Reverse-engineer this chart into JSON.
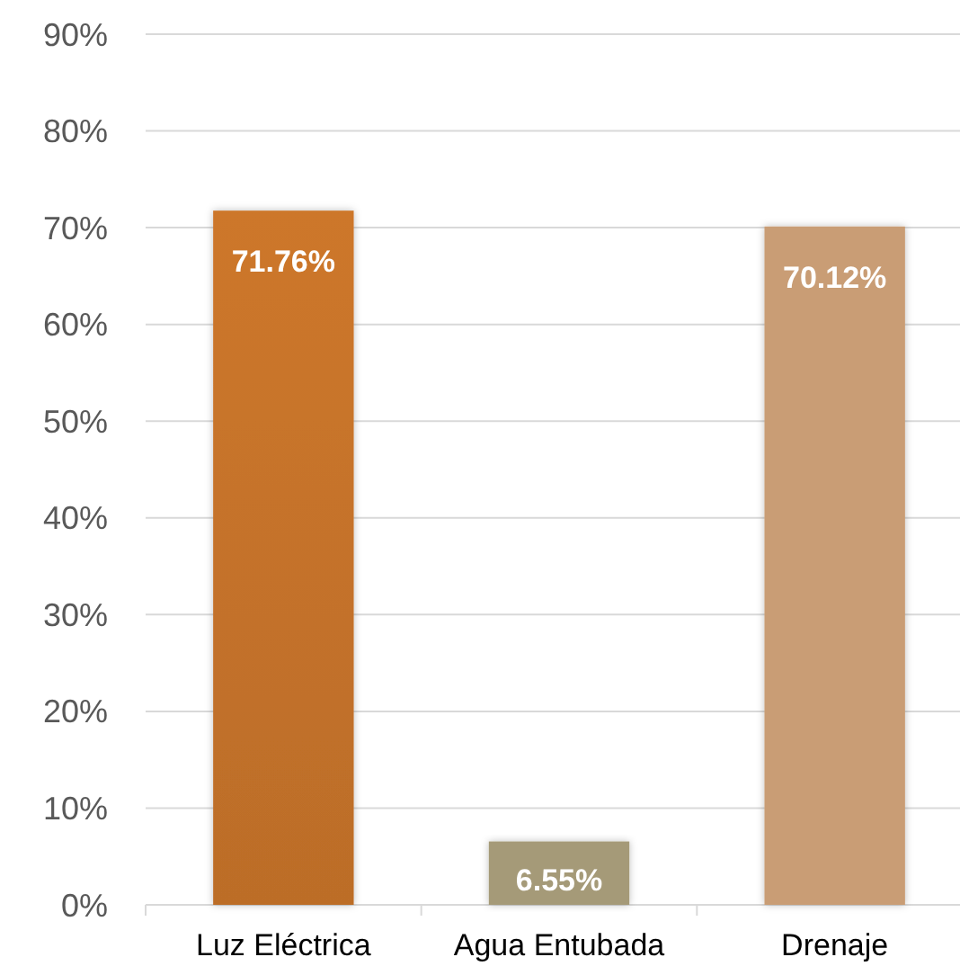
{
  "chart_data": {
    "type": "bar",
    "categories": [
      "Luz Eléctrica",
      "Agua Entubada",
      "Drenaje"
    ],
    "values": [
      71.76,
      6.55,
      70.12
    ],
    "colors": [
      "#c4722a",
      "#a59a78",
      "#c99d74"
    ],
    "value_labels": [
      "71.76%",
      "6.55%",
      "70.12%"
    ],
    "ylim": [
      0,
      90
    ],
    "yticks": [
      {
        "value": 0,
        "label": "0%"
      },
      {
        "value": 10,
        "label": "10%"
      },
      {
        "value": 20,
        "label": "20%"
      },
      {
        "value": 30,
        "label": "30%"
      },
      {
        "value": 40,
        "label": "40%"
      },
      {
        "value": 50,
        "label": "50%"
      },
      {
        "value": 60,
        "label": "60%"
      },
      {
        "value": 70,
        "label": "70%"
      },
      {
        "value": 80,
        "label": "80%"
      },
      {
        "value": 90,
        "label": "90%"
      }
    ],
    "grid": "y"
  }
}
